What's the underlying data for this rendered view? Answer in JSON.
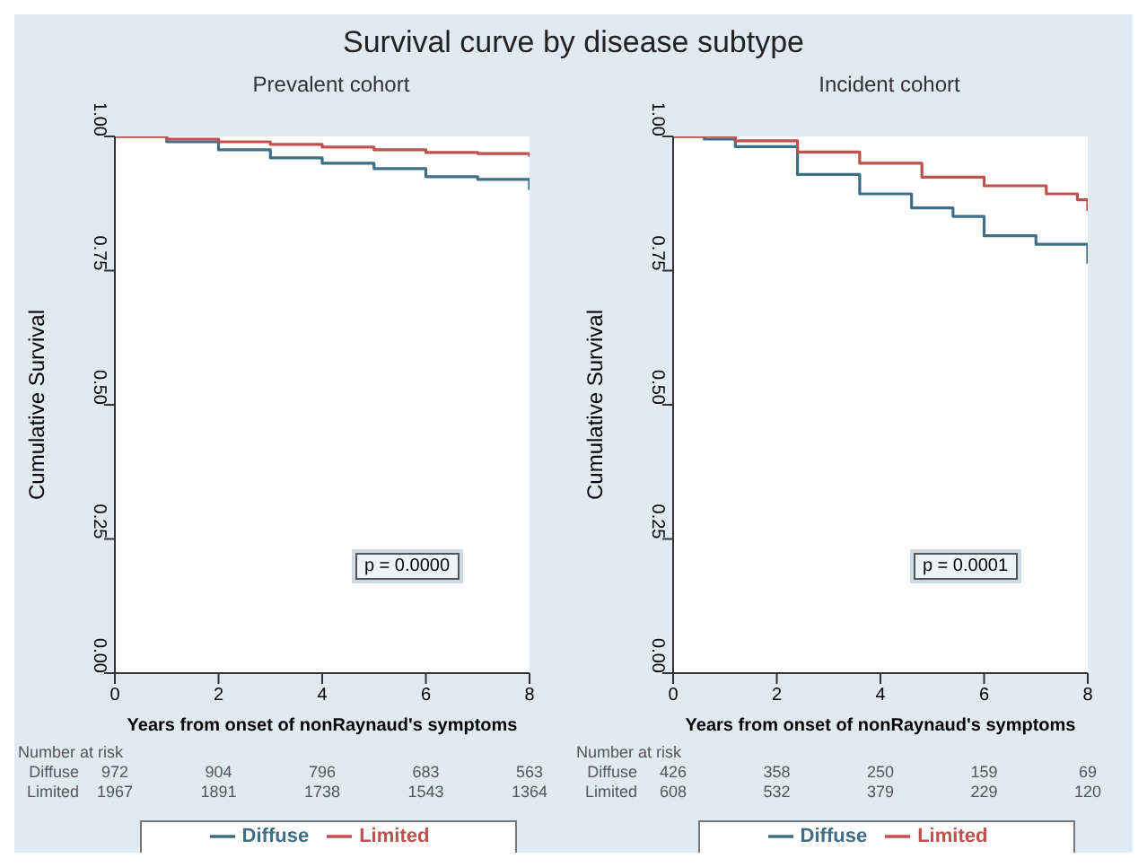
{
  "chart_data": [
    {
      "type": "step",
      "title": "Survival curve by disease subtype",
      "subtitle": "Prevalent cohort",
      "xlabel": "Years from onset of nonRaynaud's symptoms",
      "ylabel": "Cumulative Survival",
      "xlim": [
        0,
        8
      ],
      "xticks": [
        0,
        2,
        4,
        6,
        8
      ],
      "ylim": [
        0,
        1
      ],
      "yticks": [
        {
          "value": 0,
          "label": "0.00"
        },
        {
          "value": 0.25,
          "label": "0.25"
        },
        {
          "value": 0.5,
          "label": "0.50"
        },
        {
          "value": 0.75,
          "label": "0.75"
        },
        {
          "value": 1,
          "label": "1.00"
        }
      ],
      "legend": "bottom",
      "marker": "none",
      "series": [
        {
          "name": "Diffuse",
          "color": "#3f6f86",
          "x": [
            0,
            1,
            2,
            3,
            4,
            5,
            6,
            7,
            8
          ],
          "values": [
            1,
            0.99,
            0.975,
            0.96,
            0.95,
            0.94,
            0.925,
            0.92,
            0.9
          ]
        },
        {
          "name": "Limited",
          "color": "#c0504d",
          "x": [
            0,
            1,
            2,
            3,
            4,
            5,
            6,
            7,
            8
          ],
          "values": [
            1,
            0.995,
            0.99,
            0.985,
            0.98,
            0.975,
            0.97,
            0.968,
            0.962
          ]
        }
      ],
      "annotations": [
        "p = 0.0000",
        "Number at risk",
        "Diffuse",
        "972",
        "904",
        "796",
        "683",
        "563",
        "Limited",
        "1967",
        "1891",
        "1738",
        "1543",
        "1364"
      ]
    },
    {
      "type": "step",
      "subtitle": "Incident cohort",
      "xlabel": "Years from onset of nonRaynaud's symptoms",
      "ylabel": "Cumulative Survival",
      "xlim": [
        0,
        8
      ],
      "xticks": [
        0,
        2,
        4,
        6,
        8
      ],
      "ylim": [
        0,
        1
      ],
      "yticks": [
        {
          "value": 0,
          "label": "0.00"
        },
        {
          "value": 0.25,
          "label": "0.25"
        },
        {
          "value": 0.5,
          "label": "0.50"
        },
        {
          "value": 0.75,
          "label": "0.75"
        },
        {
          "value": 1,
          "label": "1.00"
        }
      ],
      "legend": "bottom",
      "marker": "none",
      "series": [
        {
          "name": "Diffuse",
          "color": "#3f6f86",
          "x": [
            0,
            0.6,
            1.2,
            2.4,
            3.6,
            4.6,
            5.4,
            6,
            7,
            8
          ],
          "values": [
            1,
            0.995,
            0.981,
            0.929,
            0.893,
            0.867,
            0.851,
            0.815,
            0.799,
            0.763
          ]
        },
        {
          "name": "Limited",
          "color": "#c0504d",
          "x": [
            0,
            1.2,
            2.4,
            3.6,
            4.8,
            6,
            7.2,
            7.8,
            8
          ],
          "values": [
            1,
            0.992,
            0.971,
            0.95,
            0.924,
            0.908,
            0.893,
            0.882,
            0.861
          ]
        }
      ],
      "annotations": [
        "p = 0.0001",
        "Number at risk",
        "Diffuse",
        "426",
        "358",
        "250",
        "159",
        "69",
        "Limited",
        "608",
        "532",
        "379",
        "229",
        "120"
      ]
    }
  ]
}
